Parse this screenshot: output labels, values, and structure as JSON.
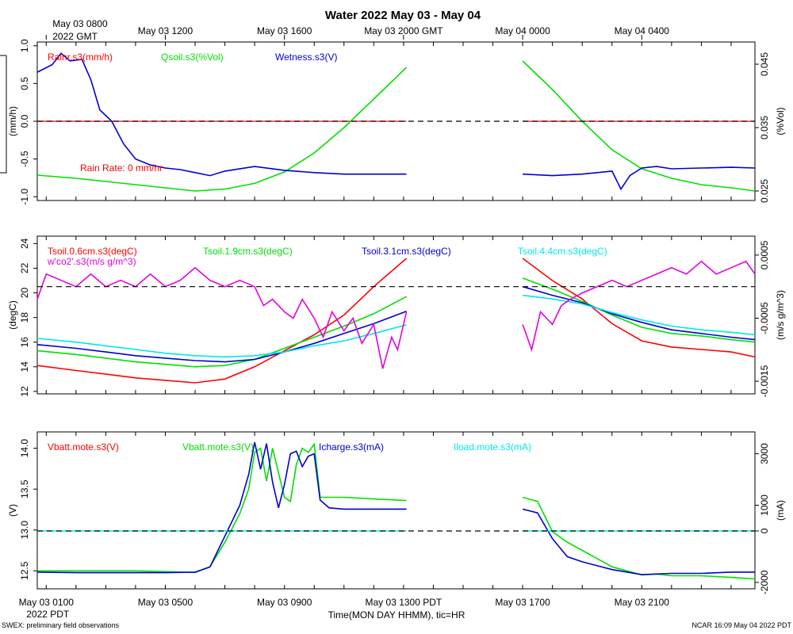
{
  "title": "Water 2022 May 03 - May 04",
  "top_axis": {
    "ticks": [
      {
        "pos": 0,
        "label": "May 03 0800",
        "sub": "2022 GMT"
      },
      {
        "pos": 4,
        "label": "May 03 1200"
      },
      {
        "pos": 8,
        "label": "May 03 1600"
      },
      {
        "pos": 12,
        "label": "May 03 2000 GMT"
      },
      {
        "pos": 16,
        "label": "May 04 0000"
      },
      {
        "pos": 20,
        "label": "May 04 0400"
      }
    ]
  },
  "bottom_axis": {
    "ticks": [
      {
        "pos": 0,
        "label": "May 03 0100"
      },
      {
        "pos": 4,
        "label": "May 03 0500"
      },
      {
        "pos": 8,
        "label": "May 03 0900"
      },
      {
        "pos": 12,
        "label": "May 03 1300 PDT"
      },
      {
        "pos": 16,
        "label": "May 03 1700"
      },
      {
        "pos": 20,
        "label": "May 03 2100"
      }
    ],
    "start_label": "2022 PDT",
    "xlabel": "Time(MON DAY HHMM), tic=HR"
  },
  "footer": {
    "left": "SWEX: preliminary field observations",
    "right": "NCAR 16:09 May 04 2022 PDT"
  },
  "colors": {
    "red": "#ff0000",
    "green": "#00e000",
    "blue": "#0000d0",
    "cyan": "#00e8e8",
    "magenta": "#e000e0",
    "black": "#000000"
  },
  "chart_data": [
    {
      "type": "line",
      "panel": "water",
      "x_range": [
        -0.3,
        23.8
      ],
      "gap": [
        12.1,
        16.0
      ],
      "ylabel_left": "(mm/h)",
      "ylabel_right": "(%Vol)",
      "y_left": {
        "min": -1.05,
        "max": 1.05,
        "ticks": [
          -1.0,
          -0.5,
          0.0,
          0.5,
          1.0
        ],
        "tick_labels": [
          "-1.0",
          "-0.5",
          "0.0",
          "0.5",
          "1.0"
        ]
      },
      "y_right": {
        "min": 0.0235,
        "max": 0.0485,
        "ticks": [
          0.025,
          0.035,
          0.045
        ],
        "tick_labels": [
          "0.025",
          "0.035",
          "0.045"
        ]
      },
      "zero_line": 0.0,
      "annotation": "Rain Rate: 0 mm/hr",
      "series": [
        {
          "name": "Rainr.s3(mm/h)",
          "color": "red",
          "axis": "left",
          "x": [
            -0.3,
            12.1,
            16.0,
            23.8
          ],
          "y": [
            0.0,
            0.0,
            0.0,
            0.0
          ]
        },
        {
          "name": "Qsoil.s3(%Vol)",
          "color": "green",
          "axis": "right",
          "x": [
            -0.3,
            1,
            2,
            3,
            4,
            5,
            6,
            7,
            8,
            9,
            10,
            11,
            12.1,
            16.0,
            17,
            18,
            19,
            20,
            21,
            22,
            23,
            23.8
          ],
          "y": [
            0.0275,
            0.027,
            0.0265,
            0.026,
            0.0255,
            0.025,
            0.0253,
            0.0262,
            0.028,
            0.031,
            0.035,
            0.0395,
            0.0445,
            0.0455,
            0.041,
            0.036,
            0.0315,
            0.0285,
            0.027,
            0.026,
            0.0255,
            0.025
          ]
        },
        {
          "name": "Wetness.s3(V)",
          "color": "blue",
          "axis": "left",
          "x": [
            -0.3,
            0.2,
            0.5,
            0.8,
            1.2,
            1.5,
            1.8,
            2.2,
            2.6,
            3.0,
            3.5,
            4.0,
            4.5,
            5.0,
            5.5,
            6.0,
            7.0,
            8.0,
            9.0,
            10.0,
            11.0,
            12.1,
            16.0,
            17.0,
            18.0,
            19.0,
            19.3,
            19.6,
            20.0,
            20.5,
            21.0,
            22.0,
            23.0,
            23.8
          ],
          "y": [
            0.65,
            0.75,
            0.9,
            0.8,
            0.82,
            0.55,
            0.15,
            0.0,
            -0.3,
            -0.5,
            -0.58,
            -0.62,
            -0.64,
            -0.68,
            -0.72,
            -0.66,
            -0.6,
            -0.65,
            -0.68,
            -0.7,
            -0.7,
            -0.7,
            -0.7,
            -0.72,
            -0.7,
            -0.66,
            -0.9,
            -0.72,
            -0.62,
            -0.6,
            -0.63,
            -0.62,
            -0.61,
            -0.62
          ]
        }
      ]
    },
    {
      "type": "line",
      "panel": "soil-temperature",
      "x_range": [
        -0.3,
        23.8
      ],
      "gap": [
        12.1,
        16.0
      ],
      "ylabel_left": "(degC)",
      "ylabel_right": "(m/s g/m^3)",
      "y_left": {
        "min": 11.8,
        "max": 24.6,
        "ticks": [
          12,
          14,
          16,
          18,
          20,
          22,
          24
        ],
        "tick_labels": [
          "12",
          "14",
          "16",
          "18",
          "20",
          "22",
          "24"
        ]
      },
      "y_right": {
        "min": -0.0017,
        "max": 0.0008,
        "ticks": [
          -0.0015,
          -0.0005,
          0.0005
        ],
        "tick_labels": [
          "-0.0015",
          "-0.0005",
          "0.0005"
        ]
      },
      "zero_line": 0.0,
      "series": [
        {
          "name": "Tsoil.0.6cm.s3(degC)",
          "color": "red",
          "axis": "left",
          "x": [
            -0.3,
            1,
            2,
            3,
            4,
            5,
            6,
            7,
            8,
            9,
            10,
            11,
            12.1,
            16.0,
            17,
            18,
            19,
            20,
            21,
            22,
            23,
            23.8
          ],
          "y": [
            14.1,
            13.7,
            13.4,
            13.1,
            12.9,
            12.7,
            13.0,
            14.0,
            15.3,
            16.6,
            18.2,
            20.5,
            22.8,
            22.8,
            21.0,
            19.5,
            17.5,
            16.1,
            15.6,
            15.4,
            15.2,
            14.8
          ]
        },
        {
          "name": "Tsoil.1.9cm.s3(degC)",
          "color": "green",
          "axis": "left",
          "x": [
            -0.3,
            1,
            2,
            3,
            4,
            5,
            6,
            7,
            8,
            9,
            10,
            11,
            12.1,
            16.0,
            17,
            18,
            19,
            20,
            21,
            22,
            23,
            23.8
          ],
          "y": [
            15.3,
            15.0,
            14.7,
            14.4,
            14.2,
            14.0,
            14.1,
            14.6,
            15.5,
            16.4,
            17.3,
            18.3,
            19.7,
            21.2,
            20.3,
            19.3,
            18.2,
            17.2,
            16.7,
            16.5,
            16.2,
            16.0
          ]
        },
        {
          "name": "Tsoil.3.1cm.s3(degC)",
          "color": "blue",
          "axis": "left",
          "x": [
            -0.3,
            1,
            2,
            3,
            4,
            5,
            6,
            7,
            8,
            9,
            10,
            11,
            12.1,
            16.0,
            17,
            18,
            19,
            20,
            21,
            22,
            23,
            23.8
          ],
          "y": [
            15.8,
            15.5,
            15.2,
            14.9,
            14.7,
            14.5,
            14.4,
            14.6,
            15.2,
            15.9,
            16.7,
            17.5,
            18.5,
            20.5,
            19.8,
            19.2,
            18.3,
            17.6,
            17.0,
            16.7,
            16.4,
            16.2
          ]
        },
        {
          "name": "Tsoil.4.4cm.s3(degC)",
          "color": "cyan",
          "axis": "left",
          "x": [
            -0.3,
            1,
            2,
            3,
            4,
            5,
            6,
            7,
            8,
            9,
            10,
            11,
            12.1,
            16.0,
            17,
            18,
            19,
            20,
            21,
            22,
            23,
            23.8
          ],
          "y": [
            16.3,
            16.0,
            15.7,
            15.4,
            15.1,
            14.9,
            14.8,
            14.9,
            15.2,
            15.7,
            16.1,
            16.7,
            17.4,
            19.8,
            19.5,
            19.1,
            18.4,
            17.8,
            17.3,
            17.0,
            16.8,
            16.6
          ]
        },
        {
          "name": "w'co2'.s3(m/s g/m^3)",
          "color": "magenta",
          "axis": "right",
          "x": [
            -0.3,
            0.0,
            0.5,
            1.0,
            1.5,
            2.0,
            2.5,
            3.0,
            3.5,
            4.0,
            4.5,
            5.0,
            5.5,
            6.0,
            6.5,
            7.0,
            7.3,
            7.6,
            8.0,
            8.3,
            8.6,
            9.0,
            9.3,
            9.6,
            10.0,
            10.3,
            10.6,
            11.0,
            11.3,
            11.6,
            11.8,
            12.1,
            16.0,
            16.3,
            16.6,
            17.0,
            17.3,
            17.6,
            18.0,
            18.5,
            19.0,
            19.5,
            20.0,
            20.5,
            21.0,
            21.5,
            22.0,
            22.5,
            23.0,
            23.5,
            23.8
          ],
          "y": [
            -0.0002,
            0.0002,
            0.0001,
            0.0,
            0.0002,
            0.0,
            0.0001,
            0.0,
            0.0002,
            0.0,
            0.0001,
            0.0003,
            0.0001,
            0.0,
            0.0001,
            0.0,
            -0.0003,
            -0.0002,
            -0.0004,
            -0.0005,
            -0.0002,
            -0.0005,
            -0.0008,
            -0.0004,
            -0.0007,
            -0.0005,
            -0.0009,
            -0.0006,
            -0.0013,
            -0.0008,
            -0.001,
            -0.0004,
            -0.0006,
            -0.001,
            -0.0004,
            -0.0006,
            -0.0003,
            -0.0002,
            -0.0001,
            0.0,
            0.0001,
            0.0,
            0.0001,
            0.0002,
            0.0003,
            0.0002,
            0.0004,
            0.0002,
            0.0003,
            0.0004,
            0.0002
          ]
        }
      ]
    },
    {
      "type": "line",
      "panel": "power",
      "x_range": [
        -0.3,
        23.8
      ],
      "gap": [
        12.1,
        16.0
      ],
      "ylabel_left": "(V)",
      "ylabel_right": "(mA)",
      "y_left": {
        "min": 12.28,
        "max": 14.2,
        "ticks": [
          12.5,
          13.0,
          13.5,
          14.0
        ],
        "tick_labels": [
          "12.5",
          "13.0",
          "13.5",
          "14.0"
        ]
      },
      "y_right": {
        "min": -2250,
        "max": 3850,
        "ticks": [
          -2000,
          0,
          1000,
          3000
        ],
        "tick_labels": [
          "-2000",
          "0",
          "1000",
          "3000"
        ]
      },
      "zero_line": 0,
      "series": [
        {
          "name": "Vbatt.mote.s3(V)",
          "color": "red",
          "axis": "left",
          "x": [],
          "y": []
        },
        {
          "name": "Vbatt.mote.s3(V)",
          "color": "green",
          "axis": "left",
          "x": [
            -0.3,
            1,
            2,
            3,
            4,
            5,
            5.5,
            6.0,
            6.5,
            6.8,
            7.0,
            7.2,
            7.4,
            7.6,
            7.8,
            8.0,
            8.2,
            8.4,
            8.6,
            8.8,
            9.0,
            9.2,
            9.5,
            10,
            11,
            12.1,
            16.0,
            16.5,
            17.0,
            17.5,
            18.0,
            18.5,
            19.0,
            19.5,
            20.0,
            20.5,
            21.0,
            22.0,
            23.0,
            23.8
          ],
          "y": [
            12.5,
            12.5,
            12.5,
            12.5,
            12.49,
            12.48,
            12.55,
            12.85,
            13.2,
            13.5,
            13.95,
            14.0,
            13.6,
            14.0,
            13.7,
            13.4,
            13.35,
            13.8,
            14.0,
            13.95,
            14.05,
            13.4,
            13.4,
            13.4,
            13.38,
            13.36,
            13.4,
            13.35,
            12.98,
            12.85,
            12.75,
            12.65,
            12.55,
            12.5,
            12.45,
            12.46,
            12.44,
            12.44,
            12.42,
            12.4
          ]
        },
        {
          "name": "Icharge.s3(mA)",
          "color": "blue",
          "axis": "right",
          "x": [
            -0.3,
            1,
            2,
            3,
            4,
            5,
            5.5,
            6.0,
            6.5,
            6.8,
            7.0,
            7.2,
            7.4,
            7.6,
            7.8,
            8.0,
            8.2,
            8.4,
            8.6,
            8.8,
            9.0,
            9.2,
            9.5,
            10,
            11,
            12.1,
            16.0,
            16.5,
            17.0,
            17.5,
            18.0,
            19.0,
            20.0,
            21.0,
            22.0,
            23.0,
            23.8
          ],
          "y": [
            -1600,
            -1620,
            -1620,
            -1620,
            -1620,
            -1600,
            -1400,
            -200,
            1000,
            2200,
            3450,
            2400,
            3400,
            1900,
            900,
            1800,
            3000,
            3100,
            2500,
            2900,
            3000,
            1200,
            900,
            850,
            850,
            850,
            850,
            700,
            -300,
            -1000,
            -1200,
            -1500,
            -1700,
            -1650,
            -1650,
            -1600,
            -1600
          ]
        },
        {
          "name": "Iload.mote.s3(mA)",
          "color": "cyan",
          "axis": "right",
          "x": [
            -0.3,
            12.1,
            16.0,
            23.8
          ],
          "y": [
            0,
            0,
            0,
            0
          ]
        }
      ],
      "legend_labels": [
        "Vbatt.mote.s3(V)",
        "Vbatt.mote.s3(V)",
        "Icharge.s3(mA)",
        "Iload.mote.s3(mA)"
      ]
    }
  ],
  "legends": {
    "water": [
      "Rainr.s3(mm/h)",
      "Qsoil.s3(%Vol)",
      "Wetness.s3(V)"
    ],
    "soil": [
      "Tsoil.0.6cm.s3(degC)",
      "Tsoil.1.9cm.s3(degC)",
      "Tsoil.3.1cm.s3(degC)",
      "Tsoil.4.4cm.s3(degC)",
      "w'co2'.s3(m/s g/m^3)"
    ],
    "power": [
      "Vbatt.mote.s3(V)",
      "Vbatt.mote.s3(V)",
      "Icharge.s3(mA)",
      "Iload.mote.s3(mA)"
    ]
  }
}
